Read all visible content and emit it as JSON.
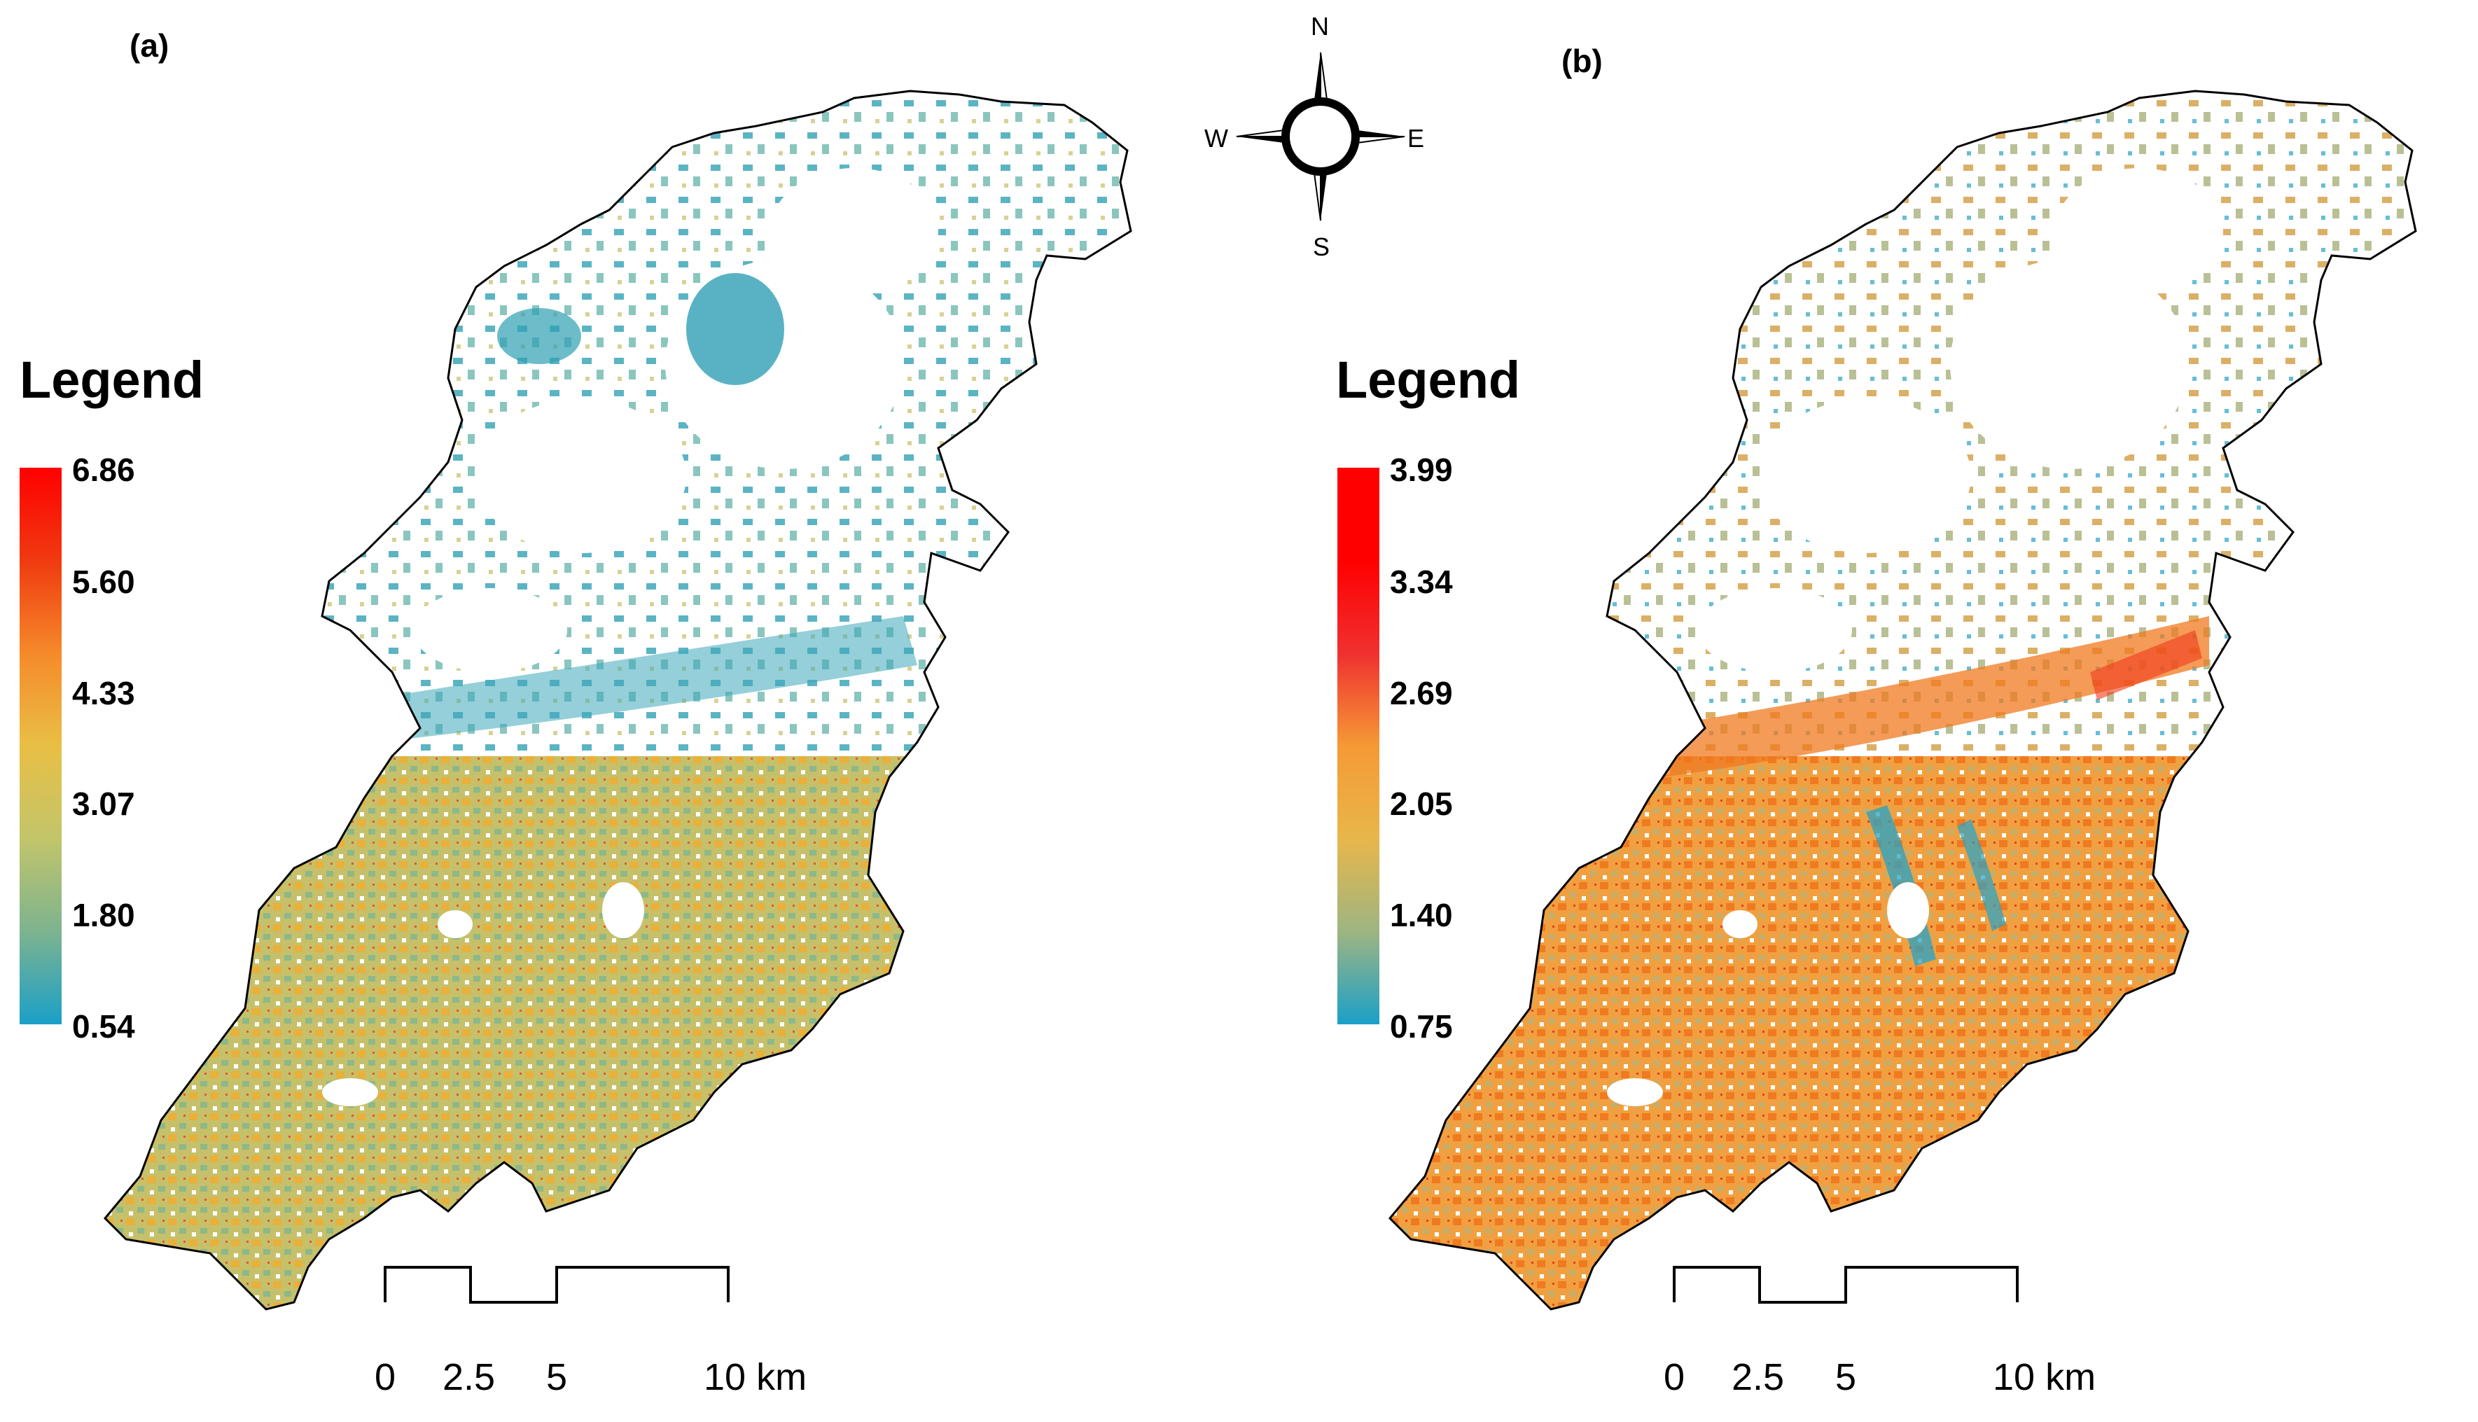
{
  "panels": [
    {
      "label": "(a)",
      "legend": {
        "title": "Legend",
        "ticks": [
          "6.86",
          "5.60",
          "4.33",
          "3.07",
          "1.80",
          "0.54"
        ],
        "gradient": [
          "#ff0000",
          "#f03a10",
          "#f58a2a",
          "#e9bf45",
          "#c2c56a",
          "#7db38f",
          "#1aa0c8"
        ]
      }
    },
    {
      "label": "(b)",
      "legend": {
        "title": "Legend",
        "ticks": [
          "3.99",
          "3.34",
          "2.69",
          "2.05",
          "1.40",
          "0.75"
        ],
        "gradient": [
          "#ff0000",
          "#ff0000",
          "#f03030",
          "#f59a35",
          "#e8b64a",
          "#9eb582",
          "#1aa0c8"
        ]
      }
    }
  ],
  "compass": {
    "n": "N",
    "s": "S",
    "e": "E",
    "w": "W"
  },
  "scale_bar": {
    "labels": [
      "0",
      "2.5",
      "5",
      "10 km"
    ]
  },
  "map_colors": {
    "a": {
      "north": "#3ea7b9",
      "south": "#c6c06a",
      "accent": "#e9b03a",
      "hot": "#e8552b"
    },
    "b": {
      "north": "#d8a855",
      "south": "#f0a040",
      "accent": "#f07a20",
      "cool": "#27a3c6",
      "hot": "#f03a1a"
    }
  }
}
